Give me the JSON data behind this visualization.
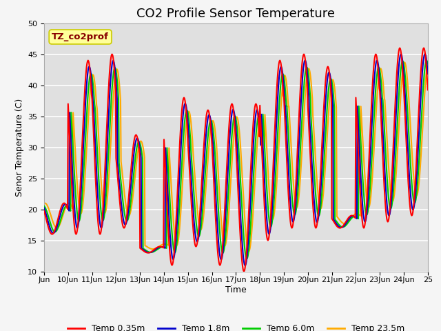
{
  "title": "CO2 Profile Sensor Temperature",
  "ylabel": "Senor Temperature (C)",
  "xlabel": "Time",
  "ylim": [
    10,
    50
  ],
  "yticks": [
    10,
    15,
    20,
    25,
    30,
    35,
    40,
    45,
    50
  ],
  "xtick_labels": [
    "Jun",
    "10Jun",
    "11Jun",
    "12Jun",
    "13Jun",
    "14Jun",
    "15Jun",
    "16Jun",
    "17Jun",
    "18Jun",
    "19Jun",
    "20Jun",
    "21Jun",
    "22Jun",
    "23Jun",
    "24Jun",
    "25"
  ],
  "xtick_positions": [
    9,
    10,
    11,
    12,
    13,
    14,
    15,
    16,
    17,
    18,
    19,
    20,
    21,
    22,
    23,
    24,
    25
  ],
  "series_colors": [
    "#ff0000",
    "#0000cc",
    "#00cc00",
    "#ffaa00"
  ],
  "series_labels": [
    "Temp 0.35m",
    "Temp 1.8m",
    "Temp 6.0m",
    "Temp 23.5m"
  ],
  "annotation_text": "TZ_co2prof",
  "annotation_color": "#880000",
  "annotation_bg": "#ffff99",
  "annotation_border": "#cccc00",
  "plot_bg_color": "#e0e0e0",
  "fig_bg_color": "#f5f5f5",
  "grid_color": "#ffffff",
  "title_fontsize": 13,
  "label_fontsize": 9,
  "tick_fontsize": 8,
  "legend_fontsize": 9,
  "day_data_s0": {
    "9": [
      21,
      16
    ],
    "10": [
      44,
      16
    ],
    "11": [
      45,
      16
    ],
    "12": [
      32,
      17
    ],
    "13": [
      14,
      13
    ],
    "14": [
      38,
      11
    ],
    "15": [
      36,
      14
    ],
    "16": [
      37,
      11
    ],
    "17": [
      37,
      10
    ],
    "18": [
      44,
      15
    ],
    "19": [
      45,
      17
    ],
    "20": [
      43,
      17
    ],
    "21": [
      19,
      17
    ],
    "22": [
      45,
      17
    ],
    "23": [
      46,
      18
    ],
    "24": [
      46,
      19
    ],
    "25": [
      46,
      19
    ]
  }
}
